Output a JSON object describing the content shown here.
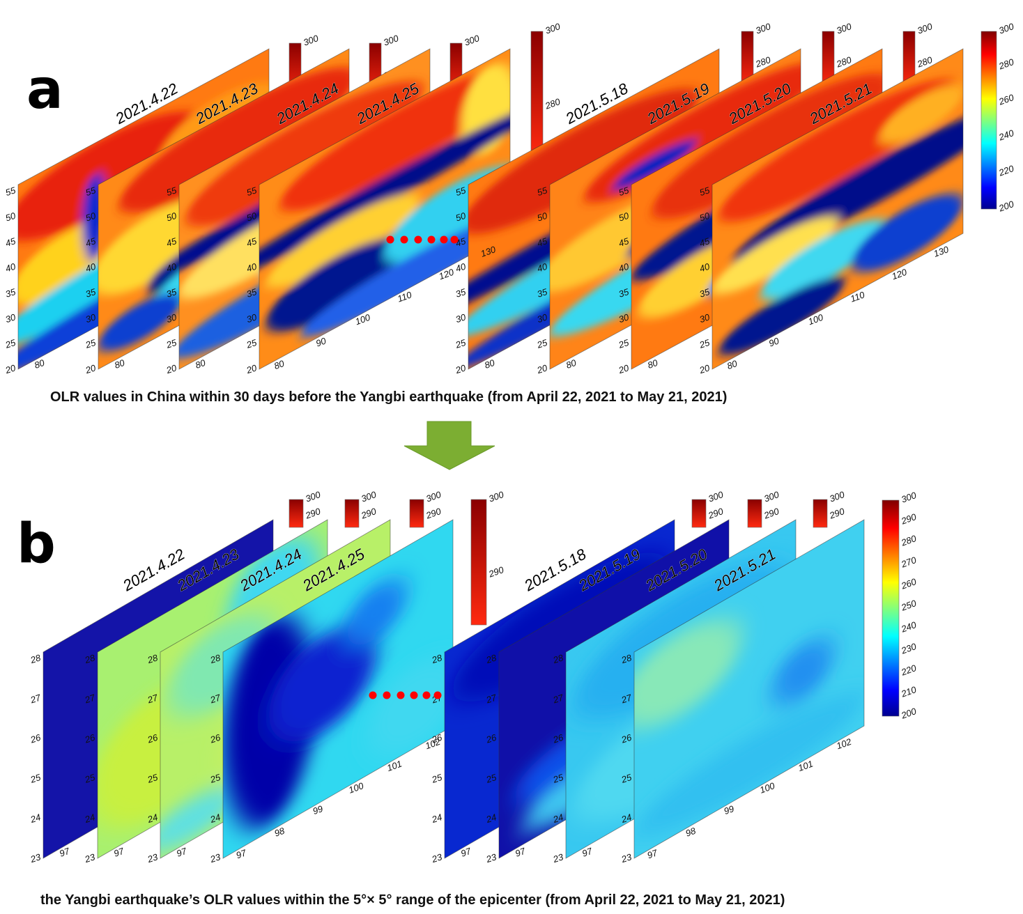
{
  "panel_a": {
    "letter": "a",
    "caption": "OLR values in China within 30 days before the Yangbi earthquake (from April 22, 2021 to May 21, 2021)",
    "dates": [
      "2021.4.22",
      "2021.4.23",
      "2021.4.24",
      "2021.4.25",
      "2021.5.18",
      "2021.5.19",
      "2021.5.20",
      "2021.5.21"
    ],
    "lat_ticks": [
      "20",
      "25",
      "30",
      "35",
      "40",
      "45",
      "50",
      "55"
    ],
    "lon_ticks": [
      "80",
      "90",
      "100",
      "110",
      "120",
      "130"
    ],
    "colorbar_ticks": [
      "200",
      "220",
      "240",
      "260",
      "280",
      "300"
    ],
    "small_colorbar_ticks": [
      "280",
      "300"
    ]
  },
  "panel_b": {
    "letter": "b",
    "caption": "the Yangbi earthquake’s OLR values within the 5°× 5° range of the epicenter (from  April 22, 2021 to May 21, 2021)",
    "dates": [
      "2021.4.22",
      "2021.4.23",
      "2021.4.24",
      "2021.4.25",
      "2021.5.18",
      "2021.5.19",
      "2021.5.20",
      "2021.5.21"
    ],
    "lat_ticks": [
      "23",
      "24",
      "25",
      "26",
      "27",
      "28"
    ],
    "lon_ticks": [
      "97",
      "98",
      "99",
      "100",
      "101",
      "102"
    ],
    "colorbar_ticks": [
      "200",
      "210",
      "220",
      "230",
      "240",
      "250",
      "260",
      "270",
      "280",
      "290",
      "300"
    ],
    "small_colorbar_ticks": [
      "290",
      "300"
    ]
  },
  "colors": {
    "jet": [
      "#00008f",
      "#0000ff",
      "#00ffff",
      "#ffff00",
      "#ff7f00",
      "#ff0000",
      "#800000"
    ],
    "arrow": "#7cae32",
    "dots": "#ff0000"
  }
}
